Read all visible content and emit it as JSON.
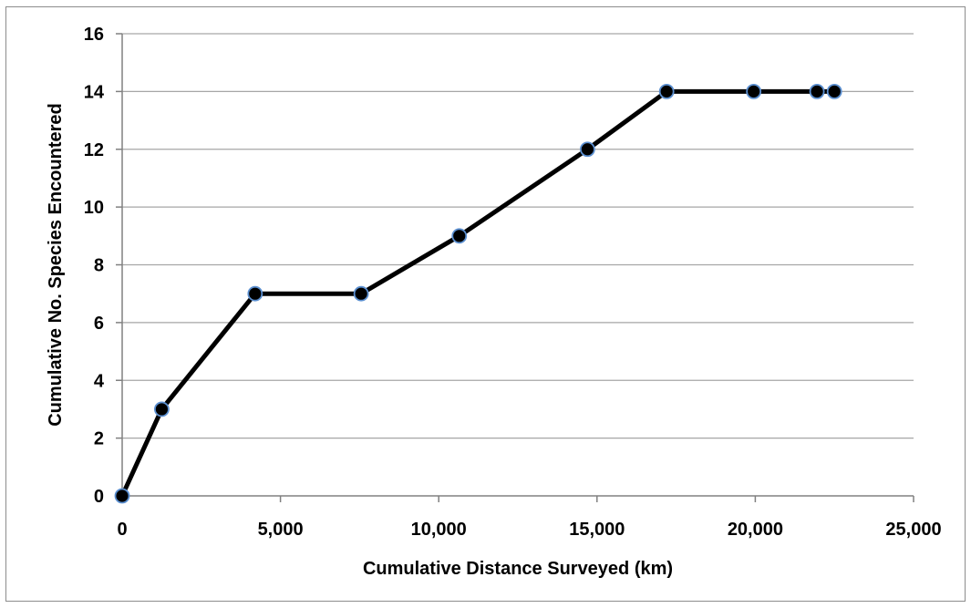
{
  "chart_data": {
    "type": "line",
    "title": "",
    "xlabel": "Cumulative Distance Surveyed (km)",
    "ylabel": "Cumulative  No. Species Encountered",
    "xlim": [
      0,
      25000
    ],
    "ylim": [
      0,
      16
    ],
    "x_ticks": [
      0,
      5000,
      10000,
      15000,
      20000,
      25000
    ],
    "x_tick_labels": [
      "0",
      "5,000",
      "10,000",
      "15,000",
      "20,000",
      "25,000"
    ],
    "y_ticks": [
      0,
      2,
      4,
      6,
      8,
      10,
      12,
      14,
      16
    ],
    "y_tick_labels": [
      "0",
      "2",
      "4",
      "6",
      "8",
      "10",
      "12",
      "14",
      "16"
    ],
    "grid": "horizontal",
    "legend": "none",
    "series": [
      {
        "x": [
          0,
          1250,
          4200,
          7550,
          10650,
          14700,
          17200,
          19950,
          21950,
          22500
        ],
        "y": [
          0,
          3,
          7,
          7,
          9,
          12,
          14,
          14,
          14,
          14
        ]
      }
    ],
    "colors": {
      "line": "#000000",
      "marker_fill": "#000000",
      "marker_edge": "#5b8fd0",
      "grid": "#a6a6a6",
      "axis": "#808080"
    }
  }
}
